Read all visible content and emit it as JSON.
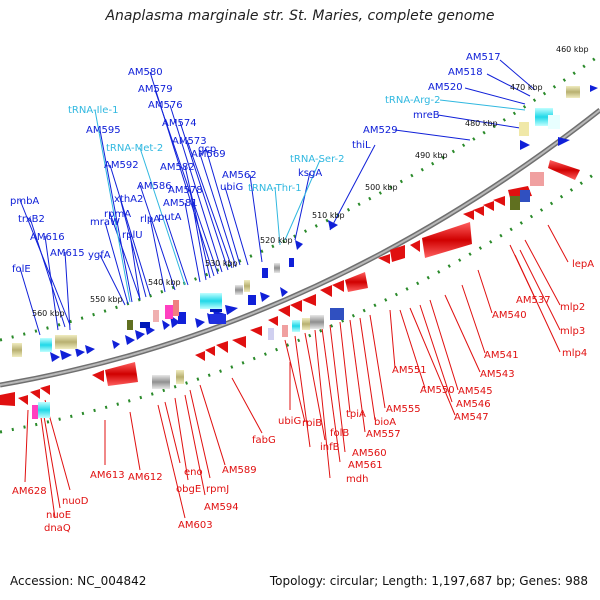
{
  "title": "Anaplasma marginale str. St. Maries, complete genome",
  "footer": {
    "accession": "Accession: NC_004842",
    "summary": "Topology: circular; Length: 1,197,687 bp; Genes: 988"
  },
  "colors": {
    "forward": "#1020d8",
    "reverse": "#e01010",
    "trna": "#30b8e0",
    "backbone": "#888888",
    "tick": "#2a8a2a"
  },
  "scale_labels": [
    "460 kbp",
    "470 kbp",
    "480 kbp",
    "490 kbp",
    "500 kbp",
    "510 kbp",
    "520 kbp",
    "530 kbp",
    "540 kbp",
    "550 kbp",
    "560 kbp"
  ],
  "forward_labels": [
    "AM517",
    "AM518",
    "AM520",
    "mreB",
    "AM529",
    "thiL",
    "ksgA",
    "AM562",
    "ubiG",
    "gcp",
    "AM569",
    "AM573",
    "AM574",
    "AM576",
    "AM579",
    "AM580",
    "AM582",
    "AM578",
    "AM581",
    "putA",
    "AM586",
    "rlpA",
    "AM592",
    "xthA2",
    "rpmA",
    "rplU",
    "AM595",
    "mraW",
    "ygfA",
    "pmbA",
    "trxB2",
    "AM616",
    "AM615",
    "folE"
  ],
  "trna_labels": [
    "tRNA-Ile-1",
    "tRNA-Met-2",
    "tRNA-Arg-2",
    "tRNA-Ser-2",
    "tRNA-Thr-1"
  ],
  "reverse_labels": [
    "lepA",
    "AM537",
    "mlp2",
    "mlp3",
    "mlp4",
    "AM540",
    "AM541",
    "AM543",
    "AM545",
    "AM546",
    "AM547",
    "AM550",
    "AM551",
    "AM555",
    "bioA",
    "AM557",
    "tpiA",
    "AM560",
    "AM561",
    "mdh",
    "folB",
    "infB",
    "rpiB",
    "ubiG",
    "fabG",
    "AM589",
    "rpmJ",
    "AM594",
    "obgE",
    "eno",
    "AM603",
    "AM612",
    "AM613",
    "nuoD",
    "nuoE",
    "dnaQ",
    "AM628"
  ]
}
